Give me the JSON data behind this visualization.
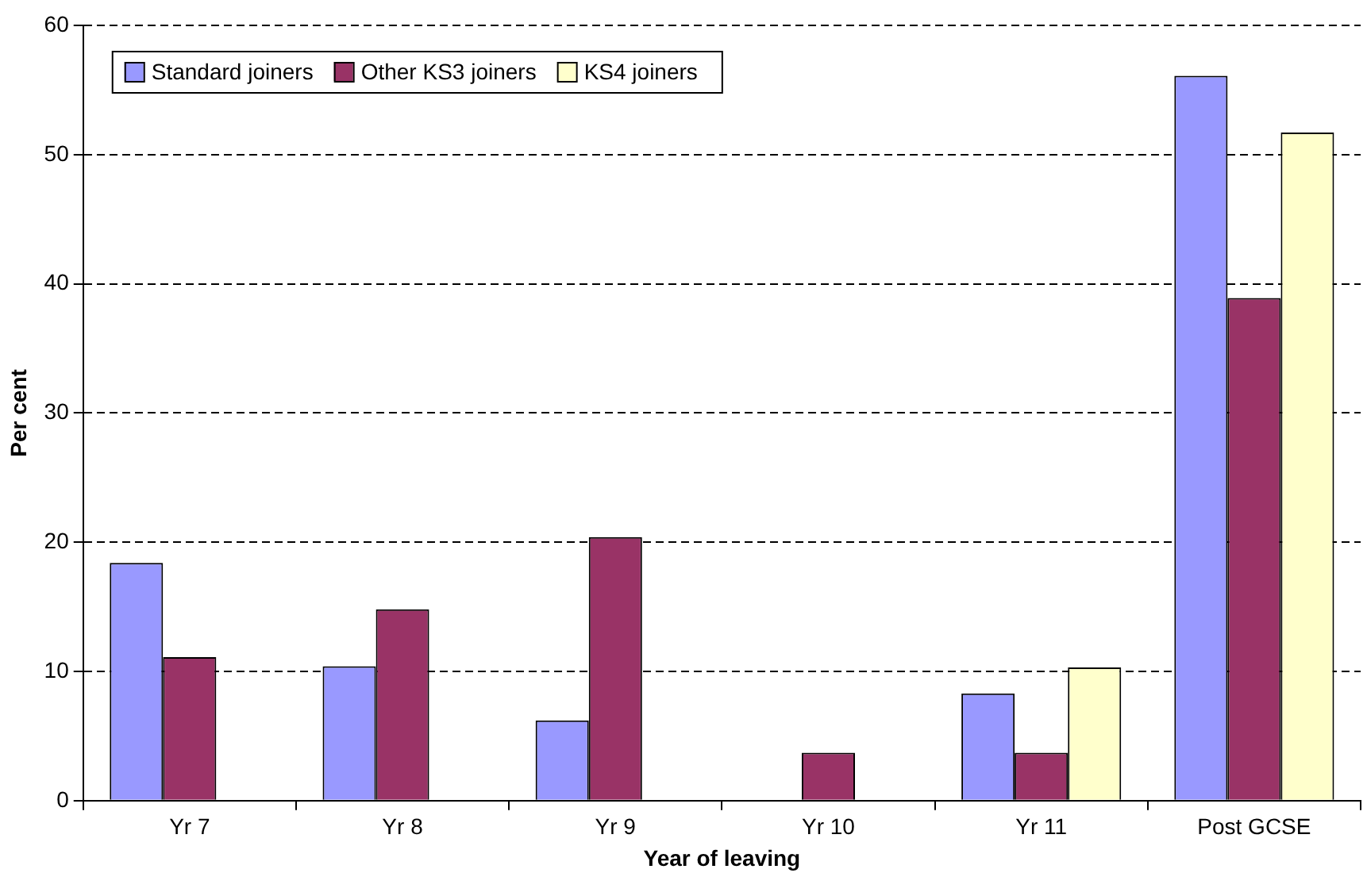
{
  "chart_data": {
    "type": "bar",
    "xlabel": "Year of leaving",
    "ylabel": "Per cent",
    "categories": [
      "Yr 7",
      "Yr 8",
      "Yr 9",
      "Yr 10",
      "Yr 11",
      "Post GCSE"
    ],
    "series": [
      {
        "name": "Standard joiners",
        "color": "#9999ff",
        "values": [
          18.4,
          10.4,
          6.2,
          0,
          8.3,
          56.1
        ]
      },
      {
        "name": "Other KS3 joiners",
        "color": "#993366",
        "values": [
          11.1,
          14.8,
          20.4,
          3.7,
          3.7,
          38.9
        ]
      },
      {
        "name": "KS4 joiners",
        "color": "#ffffcc",
        "values": [
          0,
          0,
          0,
          0,
          10.3,
          51.7
        ]
      }
    ],
    "ylim": [
      0,
      60
    ],
    "yticks": [
      0,
      10,
      20,
      30,
      40,
      50,
      60
    ],
    "grid": "y",
    "legend": "top left"
  }
}
